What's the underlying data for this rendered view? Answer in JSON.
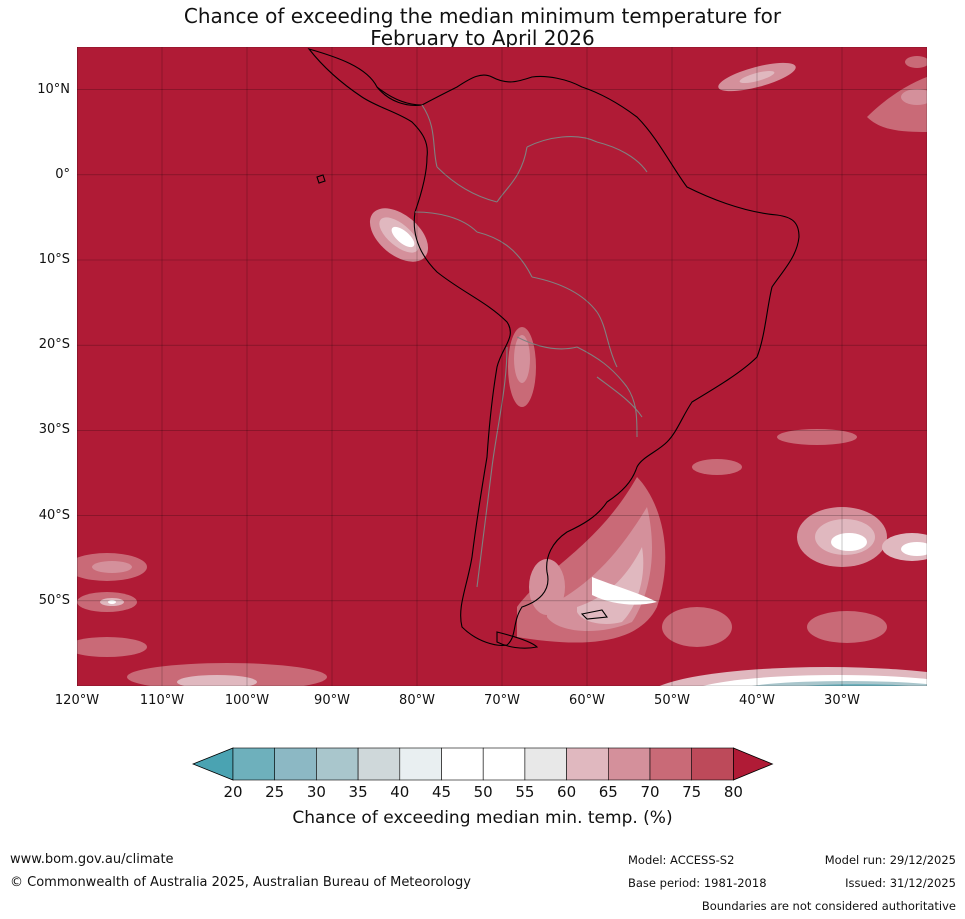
{
  "title": {
    "line1": "Chance of exceeding the median minimum temperature for",
    "line2": "February to April 2026"
  },
  "map": {
    "lon_range": [
      -120,
      -20
    ],
    "lat_range": [
      -60,
      15
    ],
    "background_color": "#b01b36",
    "lat_labels": [
      "10°N",
      "0°",
      "10°S",
      "20°S",
      "30°S",
      "40°S",
      "50°S"
    ],
    "lat_values": [
      10,
      0,
      -10,
      -20,
      -30,
      -40,
      -50
    ],
    "lon_labels": [
      "120°W",
      "110°W",
      "100°W",
      "90°W",
      "80°W",
      "70°W",
      "60°W",
      "50°W",
      "40°W",
      "30°W"
    ],
    "lon_values": [
      -120,
      -110,
      -100,
      -90,
      -80,
      -70,
      -60,
      -50,
      -40,
      -30
    ]
  },
  "colorbar": {
    "title": "Chance of exceeding median min. temp. (%)",
    "ticks": [
      "20",
      "25",
      "30",
      "35",
      "40",
      "45",
      "50",
      "55",
      "60",
      "65",
      "70",
      "75",
      "80"
    ],
    "colors": [
      "#6eb0bc",
      "#8cb8c4",
      "#a9c6cc",
      "#cfd8da",
      "#e9eff1",
      "#ffffff",
      "#ffffff",
      "#e8e8e8",
      "#e0b8bf",
      "#d4909b",
      "#c96a77",
      "#bd4a5a"
    ],
    "low_extend_color": "#4aa3b2",
    "high_extend_color": "#b01b36"
  },
  "footer": {
    "url": "www.bom.gov.au/climate",
    "copyright": "© Commonwealth of Australia 2025, Australian Bureau of Meteorology",
    "model": "Model: ACCESS-S2",
    "base_period": "Base period: 1981-2018",
    "model_run": "Model run: 29/12/2025",
    "issued": "Issued: 31/12/2025",
    "disclaimer": "Boundaries are not considered authoritative"
  }
}
